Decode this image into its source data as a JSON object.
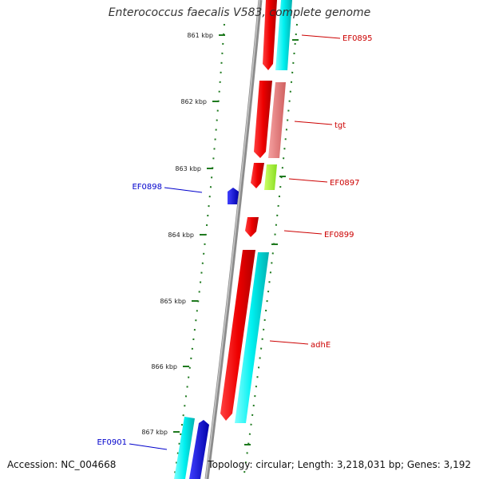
{
  "title": "Enterococcus faecalis V583, complete genome",
  "footer": {
    "accession": "Accession: NC_004668",
    "summary": "Topology: circular; Length: 3,218,031 bp; Genes: 3,192"
  },
  "ruler": {
    "major_ticks": [
      "861 kbp",
      "862 kbp",
      "863 kbp",
      "864 kbp",
      "865 kbp",
      "866 kbp",
      "867 kbp"
    ]
  },
  "labels": {
    "EF0895": "EF0895",
    "tgt": "tgt",
    "EF0897": "EF0897",
    "EF0898": "EF0898",
    "EF0899": "EF0899",
    "adhE": "adhE",
    "EF0901": "EF0901"
  },
  "colors": {
    "backbone": "#8c8c8c",
    "ruler": "#1f7a1f",
    "forward_label": "#cc0000",
    "reverse_label": "#0000cc",
    "gene_red": "#ee0000",
    "gene_cyan": "#00f0f0",
    "gene_pink": "#e98080",
    "gene_green": "#aaff33",
    "gene_blue": "#0000ee"
  }
}
